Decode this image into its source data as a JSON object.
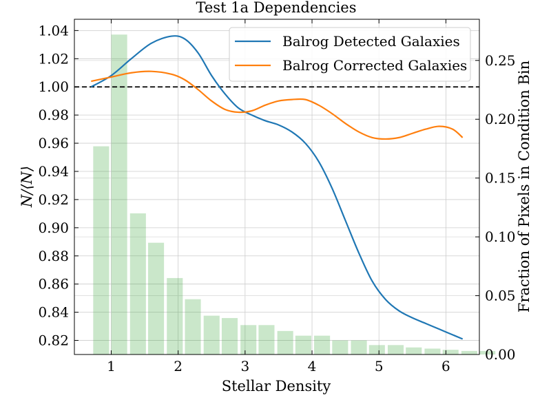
{
  "chart_data": {
    "type": "line",
    "title": "Test 1a Dependencies",
    "xlabel": "Stellar Density",
    "ylabel": "N/⟨N⟩",
    "y2label": "Fraction of Pixels in Condition Bin",
    "xlim": [
      0.45,
      6.5
    ],
    "ylim": [
      0.81,
      1.048
    ],
    "y2lim": [
      0.0,
      0.285
    ],
    "x_ticks": [
      1,
      2,
      3,
      4,
      5,
      6
    ],
    "y_ticks": [
      0.82,
      0.84,
      0.86,
      0.88,
      0.9,
      0.92,
      0.94,
      0.96,
      0.98,
      1.0,
      1.02,
      1.04
    ],
    "y_tick_labels": [
      "0.82",
      "0.84",
      "0.86",
      "0.88",
      "0.90",
      "0.92",
      "0.94",
      "0.96",
      "0.98",
      "1.00",
      "1.02",
      "1.04"
    ],
    "y2_ticks": [
      0.0,
      0.05,
      0.1,
      0.15,
      0.2,
      0.25
    ],
    "y2_tick_labels": [
      "0.00",
      "0.05",
      "0.10",
      "0.15",
      "0.20",
      "0.25"
    ],
    "grid": true,
    "legend_position": "top-right",
    "reference_line": {
      "y": 1.0,
      "style": "dashed",
      "color": "#000000"
    },
    "histogram": {
      "axis": "secondary",
      "color": "#2ca02c",
      "bin_width": 0.25,
      "bin_centers": [
        0.85,
        1.12,
        1.4,
        1.67,
        1.95,
        2.22,
        2.5,
        2.77,
        3.05,
        3.32,
        3.6,
        3.87,
        4.15,
        4.42,
        4.7,
        4.97,
        5.25,
        5.52,
        5.8,
        6.07,
        6.35,
        6.62
      ],
      "values": [
        0.177,
        0.272,
        0.12,
        0.095,
        0.065,
        0.047,
        0.033,
        0.031,
        0.025,
        0.025,
        0.02,
        0.016,
        0.016,
        0.012,
        0.012,
        0.008,
        0.008,
        0.006,
        0.005,
        0.004,
        0.003,
        0.003
      ]
    },
    "series": [
      {
        "name": "Balrog Detected Galaxies",
        "color": "#1f77b4",
        "x": [
          0.7,
          1.0,
          1.3,
          1.6,
          1.9,
          2.1,
          2.3,
          2.5,
          2.7,
          2.9,
          3.1,
          3.3,
          3.5,
          3.7,
          3.9,
          4.1,
          4.3,
          4.5,
          4.7,
          4.9,
          5.1,
          5.3,
          5.5,
          5.7,
          5.9,
          6.1,
          6.25
        ],
        "y": [
          1.0,
          1.008,
          1.02,
          1.031,
          1.036,
          1.034,
          1.024,
          1.008,
          0.995,
          0.985,
          0.98,
          0.976,
          0.973,
          0.968,
          0.96,
          0.947,
          0.928,
          0.905,
          0.882,
          0.862,
          0.849,
          0.841,
          0.836,
          0.832,
          0.828,
          0.824,
          0.821
        ]
      },
      {
        "name": "Balrog Corrected Galaxies",
        "color": "#ff7f0e",
        "x": [
          0.7,
          1.0,
          1.3,
          1.6,
          1.9,
          2.1,
          2.3,
          2.5,
          2.7,
          2.9,
          3.1,
          3.3,
          3.5,
          3.7,
          3.9,
          4.1,
          4.3,
          4.5,
          4.7,
          4.9,
          5.1,
          5.3,
          5.5,
          5.7,
          5.9,
          6.1,
          6.25
        ],
        "y": [
          1.004,
          1.007,
          1.01,
          1.011,
          1.009,
          1.005,
          0.998,
          0.99,
          0.984,
          0.982,
          0.983,
          0.987,
          0.99,
          0.991,
          0.991,
          0.987,
          0.981,
          0.974,
          0.968,
          0.964,
          0.963,
          0.964,
          0.967,
          0.97,
          0.972,
          0.97,
          0.964
        ]
      }
    ]
  }
}
